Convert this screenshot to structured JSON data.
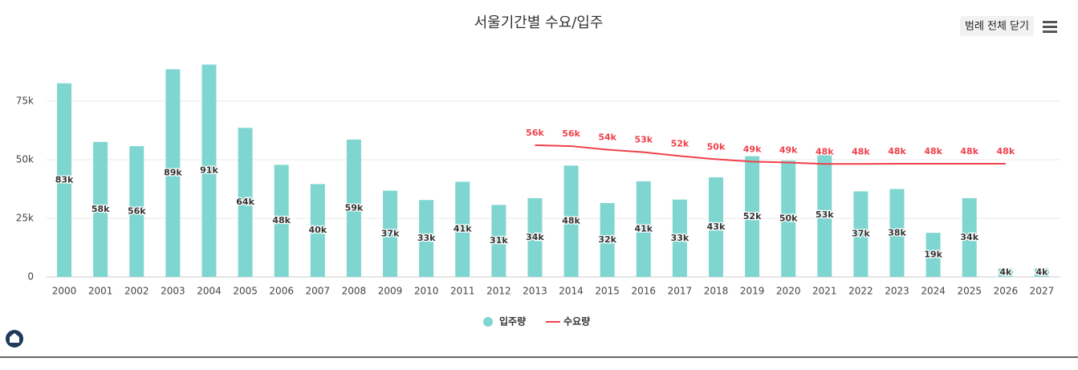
{
  "chart_data": {
    "type": "bar-line",
    "title": "서울기간별 수요/입주",
    "legend_toggle": "범례 전체 닫기",
    "categories": [
      "2000",
      "2001",
      "2002",
      "2003",
      "2004",
      "2005",
      "2006",
      "2007",
      "2008",
      "2009",
      "2010",
      "2011",
      "2012",
      "2013",
      "2014",
      "2015",
      "2016",
      "2017",
      "2018",
      "2019",
      "2020",
      "2021",
      "2022",
      "2023",
      "2024",
      "2025",
      "2026",
      "2027"
    ],
    "series": [
      {
        "name": "입주량",
        "type": "bar",
        "color": "#7fd6d0",
        "values": [
          82600,
          57600,
          55800,
          88600,
          90600,
          63600,
          47800,
          39600,
          58600,
          36800,
          32800,
          40600,
          30700,
          33600,
          47500,
          31500,
          40800,
          33000,
          42500,
          51500,
          49600,
          52600,
          36500,
          37500,
          18800,
          33600,
          3600,
          3600
        ],
        "value_labels": [
          "83k",
          "58k",
          "56k",
          "89k",
          "91k",
          "64k",
          "48k",
          "40k",
          "59k",
          "37k",
          "33k",
          "41k",
          "31k",
          "34k",
          "48k",
          "32k",
          "41k",
          "33k",
          "43k",
          "52k",
          "50k",
          "53k",
          "37k",
          "38k",
          "19k",
          "34k",
          "4k",
          "4k"
        ]
      },
      {
        "name": "수요량",
        "type": "line",
        "color": "#f0414b",
        "values": [
          null,
          null,
          null,
          null,
          null,
          null,
          null,
          null,
          null,
          null,
          null,
          null,
          null,
          56200,
          55800,
          54300,
          53200,
          51600,
          50200,
          49200,
          48800,
          48200,
          48200,
          48300,
          48300,
          48300,
          48300,
          null
        ],
        "value_labels": [
          null,
          null,
          null,
          null,
          null,
          null,
          null,
          null,
          null,
          null,
          null,
          null,
          null,
          "56k",
          "56k",
          "54k",
          "53k",
          "52k",
          "50k",
          "49k",
          "49k",
          "48k",
          "48k",
          "48k",
          "48k",
          "48k",
          "48k",
          null
        ]
      }
    ],
    "ylim": [
      0,
      100000
    ],
    "yticks": [
      0,
      {
        "value": 25000,
        "label": "25k"
      },
      {
        "value": 50000,
        "label": "50k"
      },
      {
        "value": 75000,
        "label": "75k"
      }
    ],
    "grid": true
  }
}
